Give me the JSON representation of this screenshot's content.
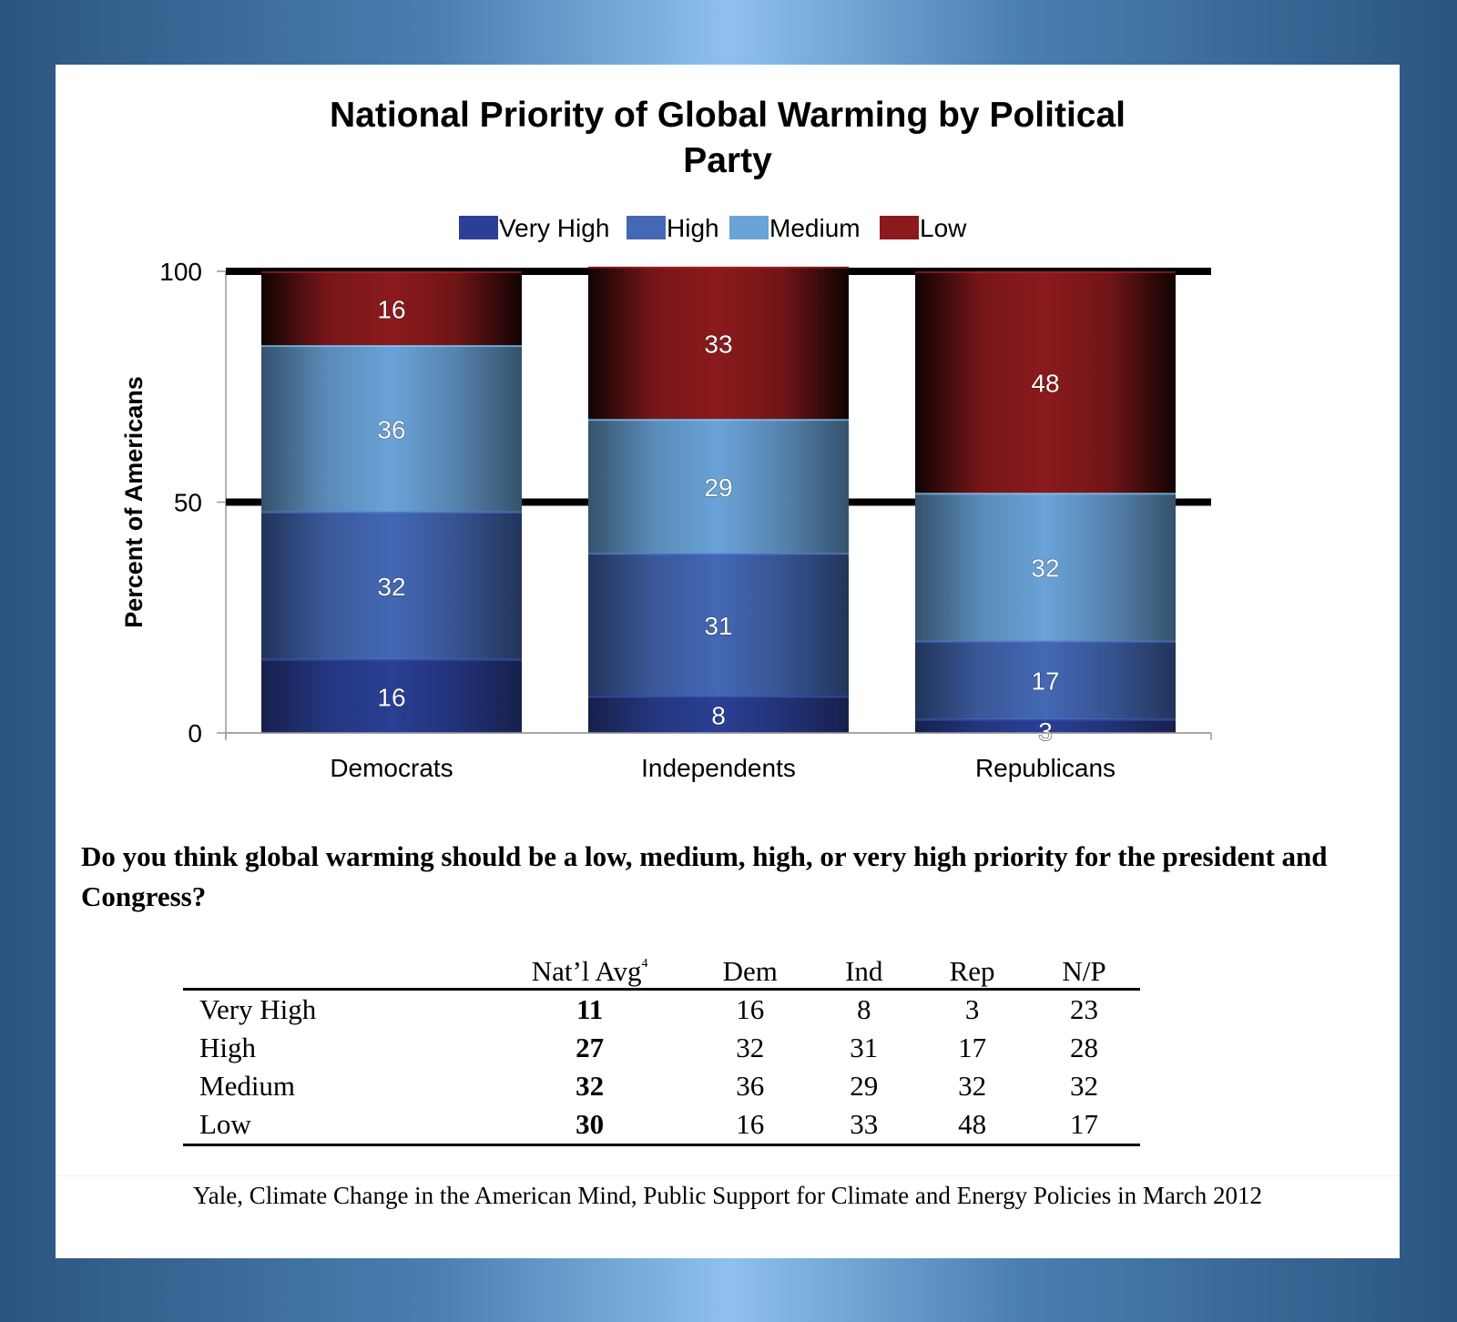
{
  "chart_data": {
    "type": "bar",
    "stacked": true,
    "title": [
      "National Priority of Global Warming by Political",
      "Party"
    ],
    "xlabel": "",
    "ylabel": "Percent of Americans",
    "ylim": [
      0,
      100
    ],
    "yticks": [
      0,
      50,
      100
    ],
    "ytick_labels": [
      "0",
      "50",
      "100"
    ],
    "categories": [
      "Democrats",
      "Independents",
      "Republicans"
    ],
    "legend_position": "top",
    "series": [
      {
        "name": "Very High",
        "color": "#2a3f95",
        "values": [
          16,
          8,
          3
        ]
      },
      {
        "name": "High",
        "color": "#4468b4",
        "values": [
          32,
          31,
          17
        ]
      },
      {
        "name": "Medium",
        "color": "#6aa3d8",
        "values": [
          36,
          29,
          32
        ]
      },
      {
        "name": "Low",
        "color": "#8b1a1d",
        "values": [
          16,
          33,
          48
        ]
      }
    ]
  },
  "question": "Do you think global warming should be a low, medium, high, or very high priority for the president and Congress?",
  "table": {
    "headers": [
      "",
      "Nat’l Avg",
      "Dem",
      "Ind",
      "Rep",
      "N/P"
    ],
    "footnote_marker": "4",
    "rows": [
      {
        "label": "Very High",
        "values": [
          "11",
          "16",
          "8",
          "3",
          "23"
        ]
      },
      {
        "label": "High",
        "values": [
          "27",
          "32",
          "31",
          "17",
          "28"
        ]
      },
      {
        "label": "Medium",
        "values": [
          "32",
          "36",
          "29",
          "32",
          "32"
        ]
      },
      {
        "label": "Low",
        "values": [
          "30",
          "16",
          "33",
          "48",
          "17"
        ]
      }
    ]
  },
  "source": "Yale, Climate Change in the American Mind, Public Support for Climate and Energy Policies in March 2012"
}
